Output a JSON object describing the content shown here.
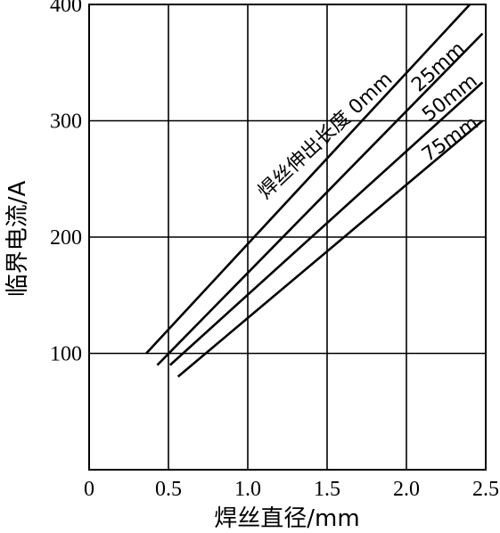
{
  "chart_data": {
    "type": "line",
    "xlabel": "焊丝直径/mm",
    "ylabel": "临界电流/A",
    "xlim": [
      0,
      2.5
    ],
    "ylim": [
      0,
      400
    ],
    "x_ticks": [
      "0",
      "0.5",
      "1.0",
      "1.5",
      "2.0",
      "2.5"
    ],
    "y_ticks": [
      "100",
      "200",
      "300",
      "400"
    ],
    "grid": true,
    "series": [
      {
        "name": "焊丝伸出长度 0mm",
        "x": [
          0.36,
          2.4
        ],
        "y": [
          100,
          400
        ]
      },
      {
        "name": "25mm",
        "x": [
          0.43,
          2.48
        ],
        "y": [
          90,
          375
        ]
      },
      {
        "name": "50mm",
        "x": [
          0.51,
          2.48
        ],
        "y": [
          90,
          333
        ]
      },
      {
        "name": "75mm",
        "x": [
          0.56,
          2.48
        ],
        "y": [
          80,
          300
        ]
      }
    ]
  }
}
